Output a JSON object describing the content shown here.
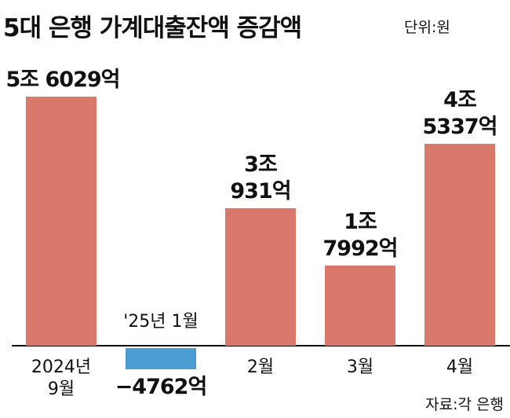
{
  "chart_data": {
    "type": "bar",
    "title": "5대 은행 가계대출잔액 증감액",
    "unit": "단위:원",
    "source": "자료:각 은행",
    "categories": [
      "2024년\n9월",
      "'25년 1월",
      "2월",
      "3월",
      "4월"
    ],
    "values": [
      56029,
      -4762,
      30931,
      17992,
      45337
    ],
    "value_labels": [
      "5조 6029억",
      "−4762억",
      "3조\n931억",
      "1조\n7992억",
      "4조\n5337억"
    ],
    "colors": [
      "#d9796b",
      "#4b9cd0",
      "#d9796b",
      "#d9796b",
      "#d9796b"
    ]
  }
}
